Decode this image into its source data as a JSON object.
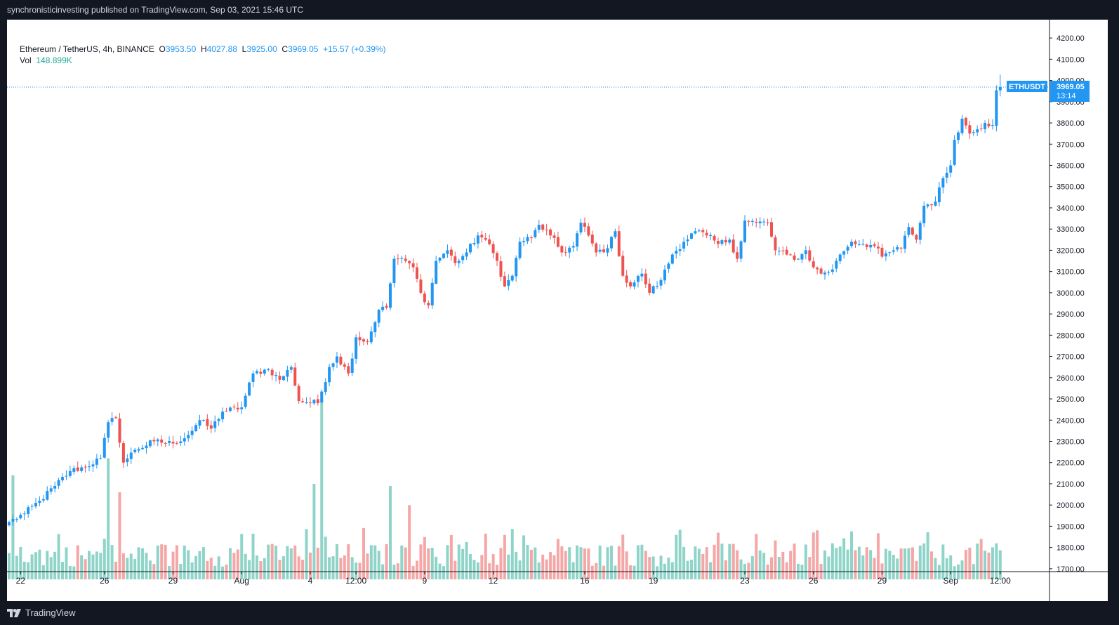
{
  "header": {
    "published_text": "synchronisticinvesting published on TradingView.com, Sep 03, 2021 15:46 UTC"
  },
  "legend": {
    "symbol": "Ethereum / TetherUS, 4h, BINANCE",
    "o_label": "O",
    "o_value": "3953.50",
    "h_label": "H",
    "h_value": "4027.88",
    "l_label": "L",
    "l_value": "3925.00",
    "c_label": "C",
    "c_value": "3969.05",
    "change": "+15.57 (+0.39%)",
    "vol_label": "Vol",
    "vol_value": "148.899K"
  },
  "price_tag": {
    "ticker": "ETHUSDT",
    "price": "3969.05",
    "countdown": "13:14",
    "color": "#2196f3"
  },
  "footer": {
    "brand": "TradingView",
    "logo_icon": "tradingview-logo-icon"
  },
  "colors": {
    "up": "#2196f3",
    "down": "#ef5350",
    "vol_up": "#8fd4c9",
    "vol_down": "#f4a7a6",
    "grid_bg": "#ffffff",
    "frame": "#131722"
  },
  "chart_data": {
    "type": "candlestick",
    "symbol": "ETHUSDT",
    "interval": "4h",
    "exchange": "BINANCE",
    "y_axis": {
      "ticks": [
        1700,
        1800,
        1900,
        2000,
        2100,
        2200,
        2300,
        2400,
        2500,
        2600,
        2700,
        2800,
        2900,
        3000,
        3100,
        3200,
        3300,
        3400,
        3500,
        3600,
        3700,
        3800,
        3900,
        4000,
        4100,
        4200
      ],
      "tick_labels": [
        "1700.00",
        "1800.00",
        "1900.00",
        "2000.00",
        "2100.00",
        "2200.00",
        "2300.00",
        "2400.00",
        "2500.00",
        "2600.00",
        "2700.00",
        "2800.00",
        "2900.00",
        "3000.00",
        "3100.00",
        "3200.00",
        "3300.00",
        "3400.00",
        "3500.00",
        "3600.00",
        "3700.00",
        "3800.00",
        "3900.00",
        "4000.00",
        "4100.00",
        "4200.00"
      ],
      "range": [
        1640,
        4260
      ]
    },
    "x_axis": {
      "labels": [
        {
          "label": "22",
          "index": 3
        },
        {
          "label": "26",
          "index": 25
        },
        {
          "label": "29",
          "index": 43
        },
        {
          "label": "Aug",
          "index": 61
        },
        {
          "label": "4",
          "index": 79
        },
        {
          "label": "12:00",
          "index": 91
        },
        {
          "label": "9",
          "index": 109
        },
        {
          "label": "12",
          "index": 127
        },
        {
          "label": "16",
          "index": 151
        },
        {
          "label": "19",
          "index": 169
        },
        {
          "label": "23",
          "index": 193
        },
        {
          "label": "26",
          "index": 211
        },
        {
          "label": "29",
          "index": 229
        },
        {
          "label": "Sep",
          "index": 247
        },
        {
          "label": "12:00",
          "index": 260
        }
      ]
    },
    "close_anchors": [
      [
        0,
        1920
      ],
      [
        4,
        1960
      ],
      [
        8,
        2020
      ],
      [
        12,
        2090
      ],
      [
        16,
        2160
      ],
      [
        20,
        2180
      ],
      [
        24,
        2220
      ],
      [
        26,
        2390
      ],
      [
        28,
        2410
      ],
      [
        30,
        2200
      ],
      [
        33,
        2260
      ],
      [
        38,
        2300
      ],
      [
        43,
        2290
      ],
      [
        47,
        2330
      ],
      [
        50,
        2400
      ],
      [
        53,
        2360
      ],
      [
        56,
        2440
      ],
      [
        61,
        2460
      ],
      [
        64,
        2620
      ],
      [
        68,
        2640
      ],
      [
        71,
        2590
      ],
      [
        74,
        2650
      ],
      [
        76,
        2490
      ],
      [
        81,
        2480
      ],
      [
        84,
        2650
      ],
      [
        86,
        2700
      ],
      [
        89,
        2620
      ],
      [
        91,
        2790
      ],
      [
        94,
        2770
      ],
      [
        97,
        2920
      ],
      [
        99,
        2930
      ],
      [
        101,
        3160
      ],
      [
        104,
        3150
      ],
      [
        106,
        3120
      ],
      [
        108,
        3000
      ],
      [
        110,
        2940
      ],
      [
        112,
        3150
      ],
      [
        115,
        3200
      ],
      [
        117,
        3140
      ],
      [
        120,
        3190
      ],
      [
        123,
        3270
      ],
      [
        125,
        3250
      ],
      [
        128,
        3150
      ],
      [
        130,
        3030
      ],
      [
        132,
        3080
      ],
      [
        134,
        3240
      ],
      [
        137,
        3260
      ],
      [
        139,
        3320
      ],
      [
        142,
        3270
      ],
      [
        145,
        3190
      ],
      [
        148,
        3220
      ],
      [
        150,
        3330
      ],
      [
        152,
        3270
      ],
      [
        154,
        3190
      ],
      [
        157,
        3210
      ],
      [
        159,
        3290
      ],
      [
        161,
        3080
      ],
      [
        163,
        3030
      ],
      [
        166,
        3090
      ],
      [
        168,
        3000
      ],
      [
        171,
        3060
      ],
      [
        174,
        3180
      ],
      [
        177,
        3240
      ],
      [
        180,
        3290
      ],
      [
        183,
        3270
      ],
      [
        186,
        3230
      ],
      [
        189,
        3250
      ],
      [
        191,
        3160
      ],
      [
        193,
        3340
      ],
      [
        196,
        3330
      ],
      [
        199,
        3330
      ],
      [
        201,
        3200
      ],
      [
        204,
        3180
      ],
      [
        207,
        3160
      ],
      [
        209,
        3200
      ],
      [
        211,
        3120
      ],
      [
        213,
        3090
      ],
      [
        216,
        3110
      ],
      [
        218,
        3180
      ],
      [
        221,
        3240
      ],
      [
        224,
        3230
      ],
      [
        227,
        3220
      ],
      [
        229,
        3170
      ],
      [
        232,
        3200
      ],
      [
        234,
        3210
      ],
      [
        236,
        3310
      ],
      [
        238,
        3250
      ],
      [
        240,
        3410
      ],
      [
        243,
        3430
      ],
      [
        245,
        3540
      ],
      [
        247,
        3600
      ],
      [
        248,
        3720
      ],
      [
        250,
        3820
      ],
      [
        252,
        3750
      ],
      [
        254,
        3770
      ],
      [
        256,
        3800
      ],
      [
        258,
        3790
      ],
      [
        259,
        3953.5
      ],
      [
        260,
        3969.05
      ]
    ],
    "last_candle": {
      "open": 3953.5,
      "high": 4027.88,
      "low": 3925.0,
      "close": 3969.05
    },
    "volume_high_spikes": [
      [
        1,
        2140
      ],
      [
        26,
        2220
      ],
      [
        29,
        2060
      ],
      [
        80,
        2100
      ],
      [
        82,
        2500
      ],
      [
        100,
        2090
      ],
      [
        105,
        2000
      ]
    ],
    "candle_count": 261
  }
}
